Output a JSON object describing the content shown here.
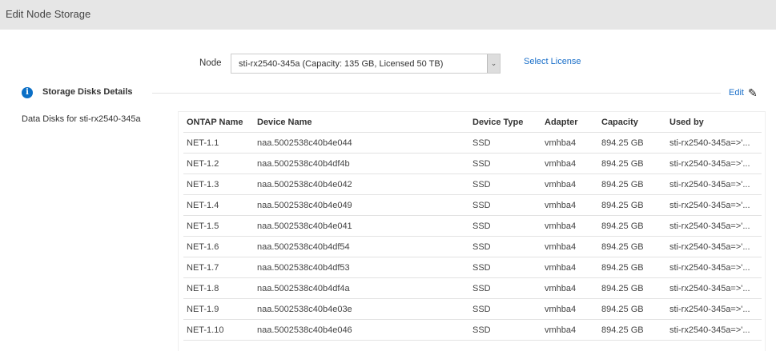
{
  "header": {
    "title": "Edit Node Storage"
  },
  "node": {
    "label": "Node",
    "selected": "sti-rx2540-345a (Capacity: 135 GB, Licensed 50 TB)",
    "select_license": "Select License"
  },
  "section": {
    "title": "Storage Disks Details",
    "edit": "Edit",
    "info_icon": "info-icon",
    "edit_icon": "pencil-icon"
  },
  "data_disks_label": "Data Disks for  sti-rx2540-345a",
  "table": {
    "columns": [
      "ONTAP Name",
      "Device Name",
      "Device Type",
      "Adapter",
      "Capacity",
      "Used by"
    ],
    "rows": [
      [
        "NET-1.1",
        "naa.5002538c40b4e044",
        "SSD",
        "vmhba4",
        "894.25 GB",
        "sti-rx2540-345a=>'..."
      ],
      [
        "NET-1.2",
        "naa.5002538c40b4df4b",
        "SSD",
        "vmhba4",
        "894.25 GB",
        "sti-rx2540-345a=>'..."
      ],
      [
        "NET-1.3",
        "naa.5002538c40b4e042",
        "SSD",
        "vmhba4",
        "894.25 GB",
        "sti-rx2540-345a=>'..."
      ],
      [
        "NET-1.4",
        "naa.5002538c40b4e049",
        "SSD",
        "vmhba4",
        "894.25 GB",
        "sti-rx2540-345a=>'..."
      ],
      [
        "NET-1.5",
        "naa.5002538c40b4e041",
        "SSD",
        "vmhba4",
        "894.25 GB",
        "sti-rx2540-345a=>'..."
      ],
      [
        "NET-1.6",
        "naa.5002538c40b4df54",
        "SSD",
        "vmhba4",
        "894.25 GB",
        "sti-rx2540-345a=>'..."
      ],
      [
        "NET-1.7",
        "naa.5002538c40b4df53",
        "SSD",
        "vmhba4",
        "894.25 GB",
        "sti-rx2540-345a=>'..."
      ],
      [
        "NET-1.8",
        "naa.5002538c40b4df4a",
        "SSD",
        "vmhba4",
        "894.25 GB",
        "sti-rx2540-345a=>'..."
      ],
      [
        "NET-1.9",
        "naa.5002538c40b4e03e",
        "SSD",
        "vmhba4",
        "894.25 GB",
        "sti-rx2540-345a=>'..."
      ],
      [
        "NET-1.10",
        "naa.5002538c40b4e046",
        "SSD",
        "vmhba4",
        "894.25 GB",
        "sti-rx2540-345a=>'..."
      ]
    ]
  }
}
